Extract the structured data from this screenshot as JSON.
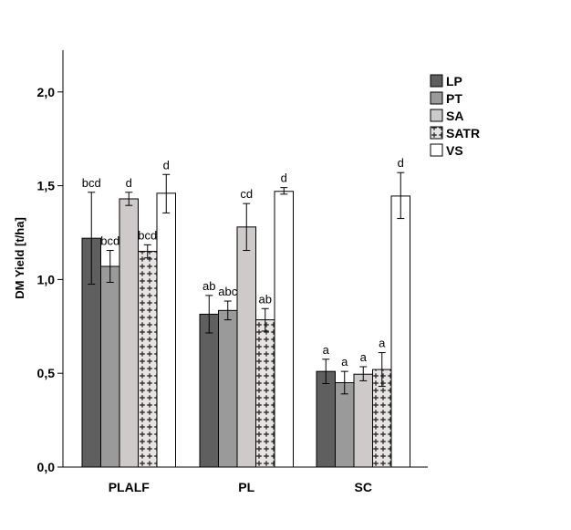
{
  "chart_data": {
    "type": "bar",
    "ylabel": "DM Yield [t/ha]",
    "ylim": [
      0,
      2.25
    ],
    "yticks": [
      {
        "value": 0,
        "label": "0,0"
      },
      {
        "value": 0.5,
        "label": "0,5"
      },
      {
        "value": 1.0,
        "label": "1,0"
      },
      {
        "value": 1.5,
        "label": "1,5"
      },
      {
        "value": 2.0,
        "label": "2,0"
      }
    ],
    "categories": [
      "PLALF",
      "PL",
      "SC"
    ],
    "legend_position": "top-right",
    "grid": false,
    "series": [
      {
        "name": "LP",
        "fill": "#5f5f5f",
        "pattern": "solid",
        "values": [
          1.22,
          0.815,
          0.51
        ],
        "errors": [
          [
            0.975,
            1.465
          ],
          [
            0.715,
            0.915
          ],
          [
            0.445,
            0.575
          ]
        ],
        "letters": [
          "bcd",
          "ab",
          "a"
        ]
      },
      {
        "name": "PT",
        "fill": "#9a9a9a",
        "pattern": "solid",
        "values": [
          1.07,
          0.835,
          0.45
        ],
        "errors": [
          [
            0.985,
            1.155
          ],
          [
            0.785,
            0.885
          ],
          [
            0.39,
            0.51
          ]
        ],
        "letters": [
          "bcd",
          "abc",
          "a"
        ]
      },
      {
        "name": "SA",
        "fill": "#cecaca",
        "pattern": "solid",
        "values": [
          1.43,
          1.28,
          0.495
        ],
        "errors": [
          [
            1.395,
            1.465
          ],
          [
            1.155,
            1.405
          ],
          [
            0.46,
            0.535
          ]
        ],
        "letters": [
          "d",
          "cd",
          "a"
        ]
      },
      {
        "name": "SATR",
        "fill": "#e8e4e4",
        "pattern": "cross",
        "values": [
          1.15,
          0.785,
          0.52
        ],
        "errors": [
          [
            1.115,
            1.185
          ],
          [
            0.725,
            0.845
          ],
          [
            0.43,
            0.61
          ]
        ],
        "letters": [
          "bcd",
          "ab",
          "a"
        ]
      },
      {
        "name": "VS",
        "fill": "#ffffff",
        "pattern": "solid",
        "values": [
          1.46,
          1.47,
          1.445
        ],
        "errors": [
          [
            1.355,
            1.56
          ],
          [
            1.455,
            1.49
          ],
          [
            1.325,
            1.57
          ]
        ],
        "letters": [
          "d",
          "d",
          "d"
        ]
      }
    ]
  }
}
